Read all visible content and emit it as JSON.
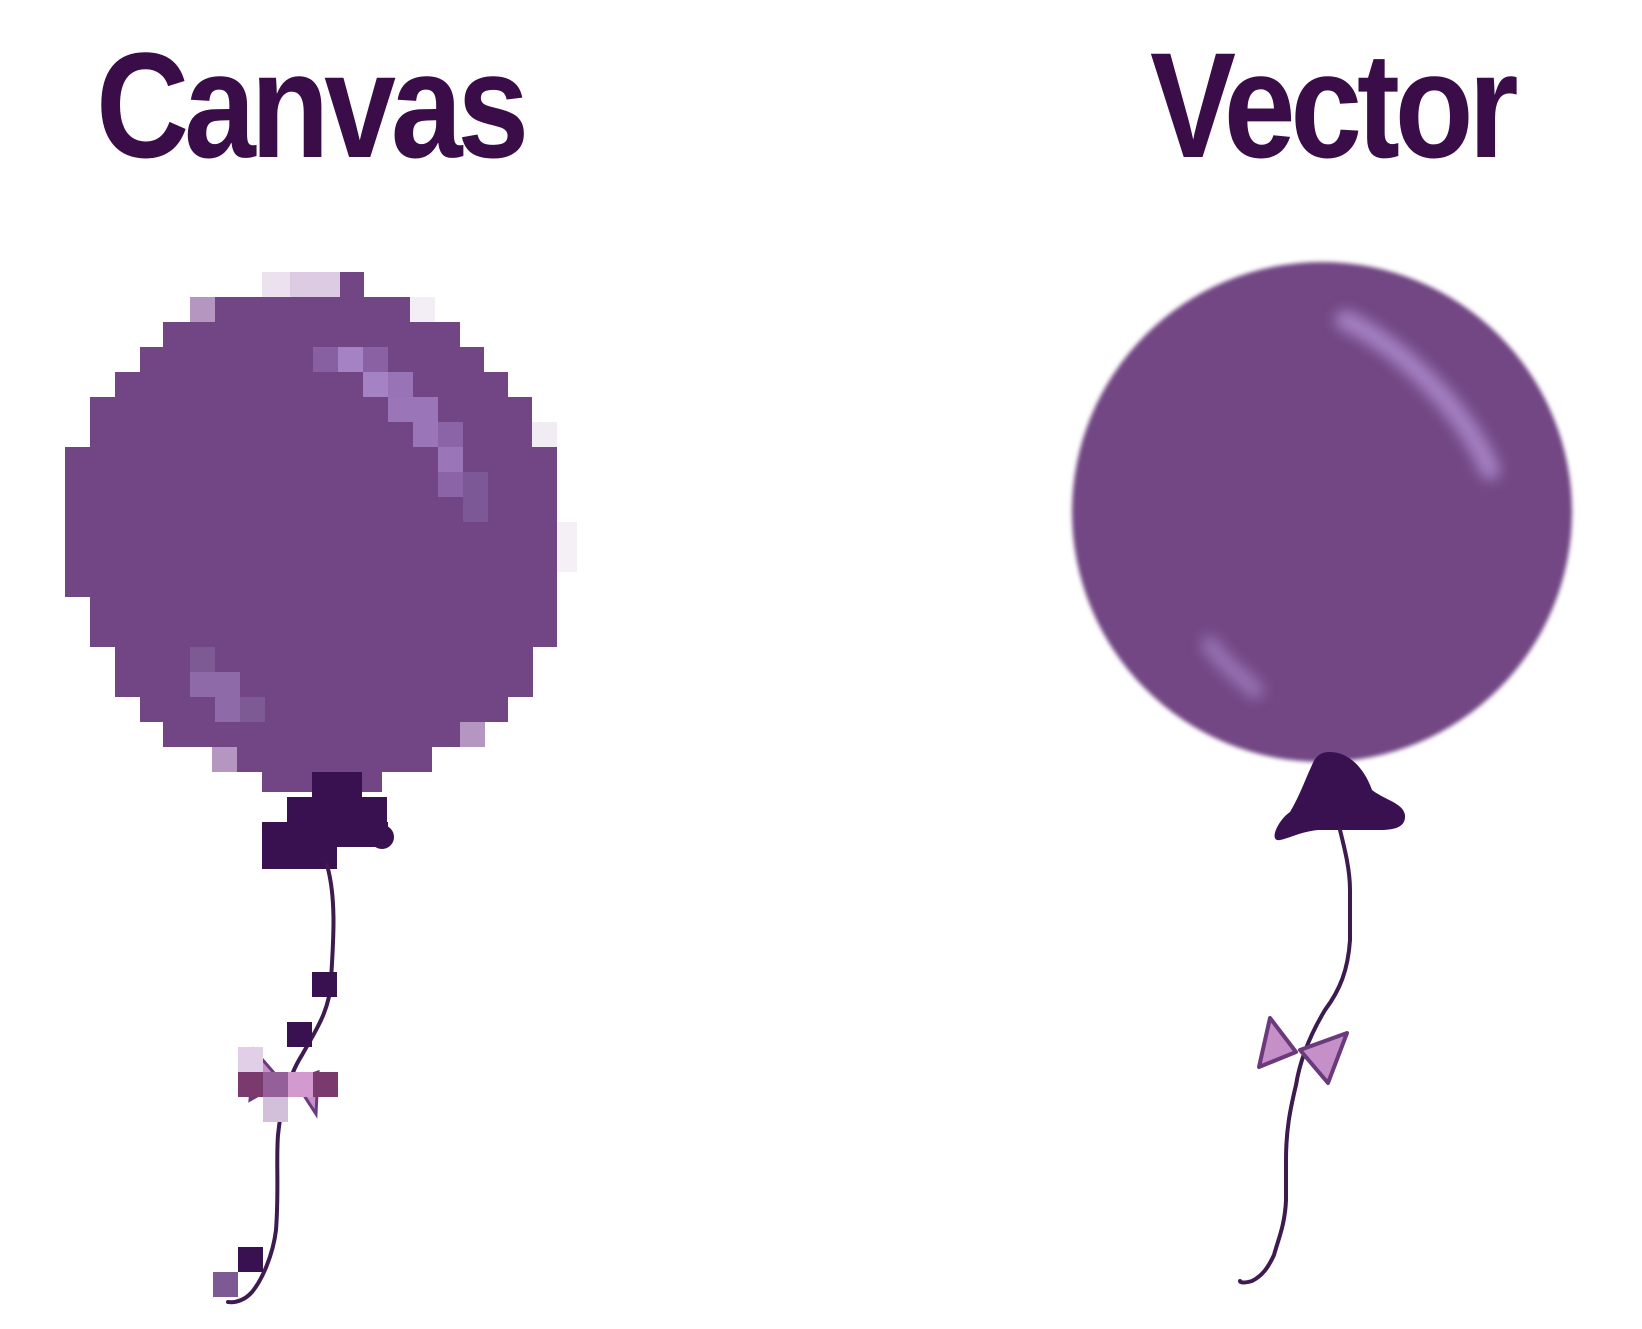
{
  "panels": {
    "canvas": {
      "title": "Canvas"
    },
    "vector": {
      "title": "Vector"
    }
  },
  "colors": {
    "title": "#3a0d48",
    "balloon_fill": "#724684",
    "balloon_highlight": "#a482c4",
    "knot": "#3a1150",
    "string": "#3d1b4f",
    "bow_fill": "#c590c8",
    "bow_stroke": "#6b3a7c",
    "background": "#ffffff"
  },
  "icons": {
    "canvas": "pixelated-balloon-icon",
    "vector": "smooth-balloon-icon"
  }
}
